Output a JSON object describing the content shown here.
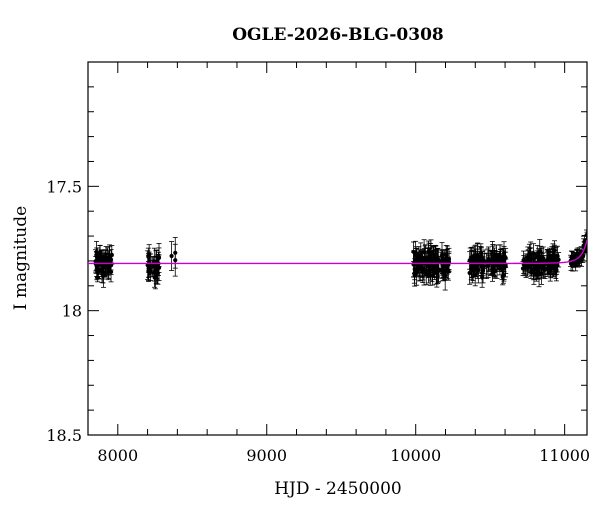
{
  "chart_data": {
    "type": "scatter",
    "title": "OGLE-2026-BLG-0308",
    "xlabel": "HJD - 2450000",
    "ylabel": "I magnitude",
    "xlim": [
      7800,
      11150
    ],
    "ylim": [
      18.5,
      17.0
    ],
    "y_inverted": true,
    "x_ticks": [
      8000,
      9000,
      10000,
      11000
    ],
    "x_tick_labels": [
      "8000",
      "9000",
      "10000",
      "11000"
    ],
    "y_ticks": [
      17.5,
      18,
      18.5
    ],
    "y_tick_labels": [
      "17.5",
      "18",
      "18.5"
    ],
    "grid": false,
    "colors": {
      "data": "#000000",
      "model": "#cc00cc"
    },
    "series": [
      {
        "type": "scatter-errorbar",
        "segments": [
          {
            "x_start": 7850,
            "x_end": 7960,
            "n": 60,
            "mag_center": 17.81,
            "mag_scatter": 0.035,
            "err": 0.04
          },
          {
            "x_start": 8200,
            "x_end": 8280,
            "n": 30,
            "mag_center": 17.81,
            "mag_scatter": 0.04,
            "err": 0.045
          },
          {
            "x_start": 8360,
            "x_end": 8390,
            "n": 3,
            "mag_center": 17.78,
            "mag_scatter": 0.02,
            "err": 0.05
          },
          {
            "x_start": 9985,
            "x_end": 10230,
            "n": 110,
            "mag_center": 17.81,
            "mag_scatter": 0.04,
            "err": 0.045
          },
          {
            "x_start": 10360,
            "x_end": 10610,
            "n": 100,
            "mag_center": 17.81,
            "mag_scatter": 0.035,
            "err": 0.04
          },
          {
            "x_start": 10720,
            "x_end": 10960,
            "n": 100,
            "mag_center": 17.81,
            "mag_scatter": 0.035,
            "err": 0.04
          }
        ],
        "rise": {
          "x_start": 11040,
          "x_end": 11150,
          "n": 40,
          "scatter": 0.02,
          "err": 0.025
        }
      },
      {
        "type": "line",
        "model": {
          "baseline": 17.81,
          "t0": 11230,
          "u0": 0.3,
          "tE": 62,
          "fs": 0.5
        }
      }
    ]
  }
}
